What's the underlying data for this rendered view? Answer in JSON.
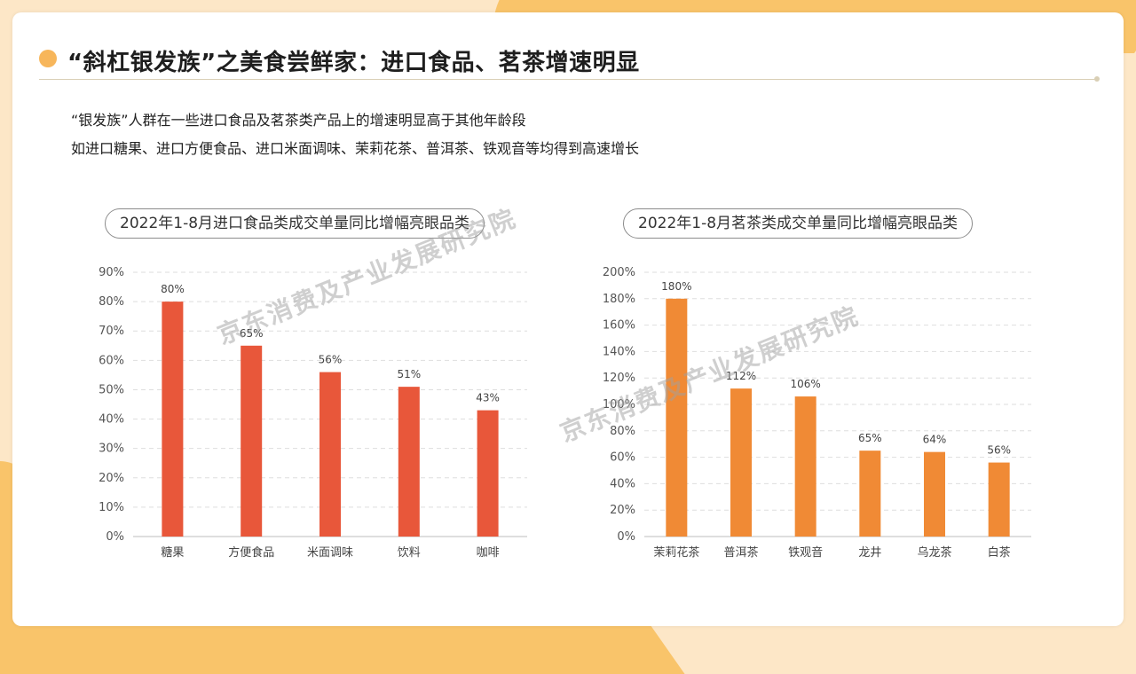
{
  "page": {
    "title": "“斜杠银发族”之美食尝鲜家：进口食品、茗茶增速明显",
    "description": [
      "“银发族”人群在一些进口食品及茗茶类产品上的增速明显高于其他年龄段",
      "如进口糖果、进口方便食品、进口米面调味、茉莉花茶、普洱茶、铁观音等均得到高速增长"
    ],
    "watermark": "京东消费及产业发展研究院"
  },
  "colors": {
    "bar_left": "#e8573a",
    "bar_right": "#f08a35",
    "accent": "#f7b65b"
  },
  "chart_data": [
    {
      "type": "bar",
      "title": "2022年1-8月进口食品类成交单量同比增幅亮眼品类",
      "categories": [
        "糖果",
        "方便食品",
        "米面调味",
        "饮料",
        "咖啡"
      ],
      "values": [
        80,
        65,
        56,
        51,
        43
      ],
      "value_labels": [
        "80%",
        "65%",
        "56%",
        "51%",
        "43%"
      ],
      "ylim": [
        0,
        90
      ],
      "ytick_labels": [
        "0%",
        "10%",
        "20%",
        "30%",
        "40%",
        "50%",
        "60%",
        "70%",
        "80%",
        "90%"
      ],
      "ytick_values": [
        0,
        10,
        20,
        30,
        40,
        50,
        60,
        70,
        80,
        90
      ],
      "grid": true,
      "xlabel": "",
      "ylabel": ""
    },
    {
      "type": "bar",
      "title": "2022年1-8月茗茶类成交单量同比增幅亮眼品类",
      "categories": [
        "茉莉花茶",
        "普洱茶",
        "铁观音",
        "龙井",
        "乌龙茶",
        "白茶"
      ],
      "values": [
        180,
        112,
        106,
        65,
        64,
        56
      ],
      "value_labels": [
        "180%",
        "112%",
        "106%",
        "65%",
        "64%",
        "56%"
      ],
      "ylim": [
        0,
        200
      ],
      "ytick_labels": [
        "0%",
        "20%",
        "40%",
        "60%",
        "80%",
        "100%",
        "120%",
        "140%",
        "160%",
        "180%",
        "200%"
      ],
      "ytick_values": [
        0,
        20,
        40,
        60,
        80,
        100,
        120,
        140,
        160,
        180,
        200
      ],
      "grid": true,
      "xlabel": "",
      "ylabel": ""
    }
  ]
}
